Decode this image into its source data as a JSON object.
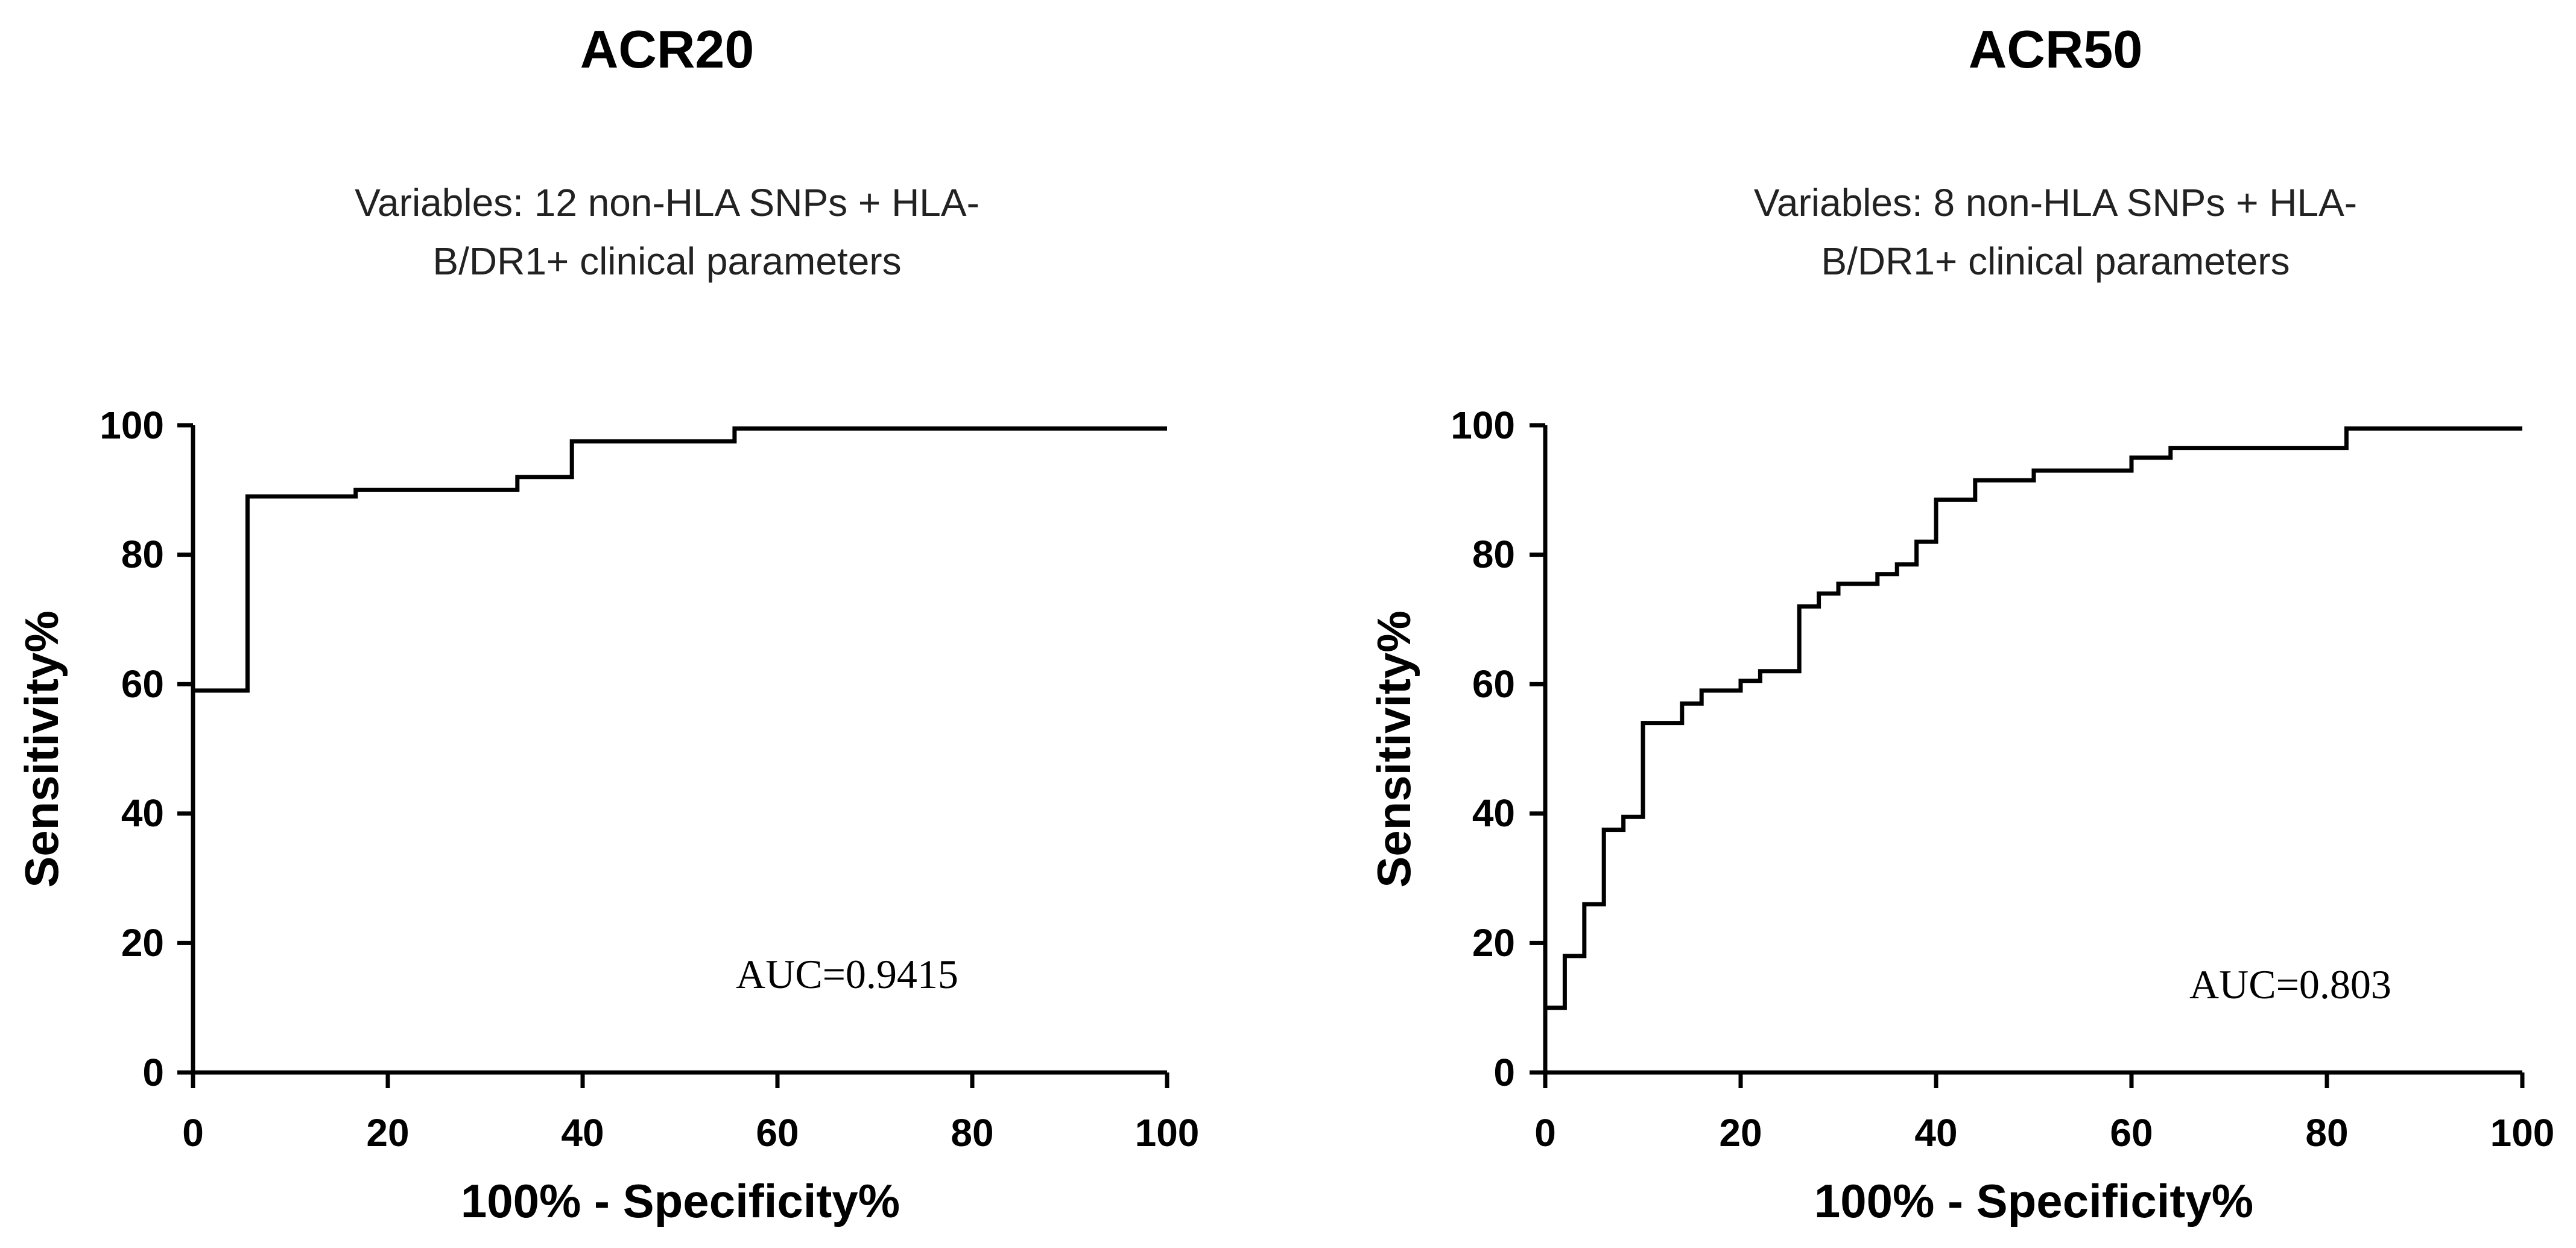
{
  "chart_data": [
    {
      "type": "line",
      "title": "ACR20",
      "subtitle_lines": [
        "Variables: 12 non-HLA SNPs + HLA-",
        "B/DR1+ clinical parameters"
      ],
      "xlabel": "100% - Specificity%",
      "ylabel": "Sensitivity%",
      "xlim": [
        0,
        100
      ],
      "ylim": [
        0,
        100
      ],
      "xticks": [
        0,
        20,
        40,
        60,
        80,
        100
      ],
      "yticks": [
        0,
        20,
        40,
        60,
        80,
        100
      ],
      "xtick_labels": [
        "0",
        "20",
        "40",
        "60",
        "80",
        "100"
      ],
      "ytick_labels": [
        "0",
        "20",
        "40",
        "60",
        "80",
        "100"
      ],
      "annotation": "AUC=0.9415",
      "series": [
        {
          "name": "ROC",
          "step": true,
          "points": [
            [
              0,
              59
            ],
            [
              5.6,
              59
            ],
            [
              5.6,
              89
            ],
            [
              16.7,
              89
            ],
            [
              16.7,
              90
            ],
            [
              33.3,
              90
            ],
            [
              33.3,
              92
            ],
            [
              38.9,
              92
            ],
            [
              38.9,
              97.5
            ],
            [
              55.6,
              97.5
            ],
            [
              55.6,
              99.5
            ],
            [
              100,
              99.5
            ]
          ]
        }
      ]
    },
    {
      "type": "line",
      "title": "ACR50",
      "subtitle_lines": [
        "Variables: 8 non-HLA SNPs + HLA-",
        "B/DR1+ clinical parameters"
      ],
      "xlabel": "100% - Specificity%",
      "ylabel": "Sensitivity%",
      "xlim": [
        0,
        100
      ],
      "ylim": [
        0,
        100
      ],
      "xticks": [
        0,
        20,
        40,
        60,
        80,
        100
      ],
      "yticks": [
        0,
        20,
        40,
        60,
        80,
        100
      ],
      "xtick_labels": [
        "0",
        "20",
        "40",
        "60",
        "80",
        "100"
      ],
      "ytick_labels": [
        "0",
        "20",
        "40",
        "60",
        "80",
        "100"
      ],
      "annotation": "AUC=0.803",
      "series": [
        {
          "name": "ROC",
          "step": true,
          "points": [
            [
              0,
              10
            ],
            [
              2,
              10
            ],
            [
              2,
              18
            ],
            [
              4,
              18
            ],
            [
              4,
              26
            ],
            [
              6,
              26
            ],
            [
              6,
              37.5
            ],
            [
              8,
              37.5
            ],
            [
              8,
              39.5
            ],
            [
              10,
              39.5
            ],
            [
              10,
              54
            ],
            [
              14,
              54
            ],
            [
              14,
              57
            ],
            [
              16,
              57
            ],
            [
              16,
              59
            ],
            [
              20,
              59
            ],
            [
              20,
              60.5
            ],
            [
              22,
              60.5
            ],
            [
              22,
              62
            ],
            [
              26,
              62
            ],
            [
              26,
              72
            ],
            [
              28,
              72
            ],
            [
              28,
              74
            ],
            [
              30,
              74
            ],
            [
              30,
              75.5
            ],
            [
              34,
              75.5
            ],
            [
              34,
              77
            ],
            [
              36,
              77
            ],
            [
              36,
              78.5
            ],
            [
              38,
              78.5
            ],
            [
              38,
              82
            ],
            [
              40,
              82
            ],
            [
              40,
              88.5
            ],
            [
              44,
              88.5
            ],
            [
              44,
              91.5
            ],
            [
              50,
              91.5
            ],
            [
              50,
              93
            ],
            [
              60,
              93
            ],
            [
              60,
              95
            ],
            [
              64,
              95
            ],
            [
              64,
              96.5
            ],
            [
              82,
              96.5
            ],
            [
              82,
              99.5
            ],
            [
              100,
              99.5
            ]
          ]
        }
      ]
    }
  ]
}
